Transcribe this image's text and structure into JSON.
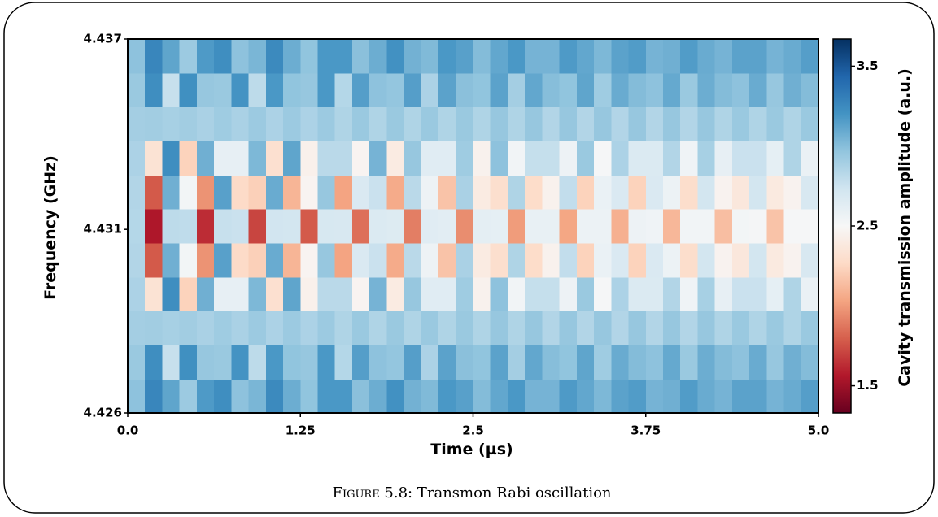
{
  "chart_data": {
    "type": "heatmap",
    "xlabel": "Time (µs)",
    "ylabel": "Frequency (GHz)",
    "x": [
      0.0625,
      0.1875,
      0.3125,
      0.4375,
      0.5625,
      0.6875,
      0.8125,
      0.9375,
      1.0625,
      1.1875,
      1.3125,
      1.4375,
      1.5625,
      1.6875,
      1.8125,
      1.9375,
      2.0625,
      2.1875,
      2.3125,
      2.4375,
      2.5625,
      2.6875,
      2.8125,
      2.9375,
      3.0625,
      3.1875,
      3.3125,
      3.4375,
      3.5625,
      3.6875,
      3.8125,
      3.9375,
      4.0625,
      4.1875,
      4.3125,
      4.4375,
      4.5625,
      4.6875,
      4.8125,
      4.9375
    ],
    "y": [
      4.4265,
      4.4275,
      4.4285,
      4.4295,
      4.4305,
      4.4315,
      4.4325,
      4.4335,
      4.4345,
      4.4355,
      4.4365
    ],
    "values": [
      [
        2.98,
        3.27,
        3.12,
        2.93,
        3.17,
        3.23,
        2.98,
        3.04,
        3.25,
        3.08,
        2.97,
        3.18,
        3.18,
        2.99,
        3.08,
        3.21,
        3.06,
        3.02,
        3.18,
        3.14,
        3.01,
        3.11,
        3.18,
        3.05,
        3.05,
        3.17,
        3.11,
        3.03,
        3.13,
        3.16,
        3.05,
        3.07,
        3.16,
        3.09,
        3.05,
        3.13,
        3.13,
        3.05,
        3.09,
        3.15
      ],
      [
        2.94,
        3.23,
        2.77,
        3.22,
        2.95,
        2.94,
        3.2,
        2.81,
        3.18,
        2.97,
        2.95,
        3.18,
        2.84,
        3.15,
        2.98,
        2.96,
        3.15,
        2.87,
        3.13,
        2.99,
        2.97,
        3.13,
        2.9,
        3.11,
        3.0,
        2.97,
        3.12,
        2.92,
        3.09,
        3.01,
        2.98,
        3.1,
        2.94,
        3.08,
        3.01,
        2.98,
        3.09,
        2.95,
        3.07,
        3.01
      ],
      [
        2.9,
        2.91,
        2.89,
        2.91,
        2.88,
        2.92,
        2.88,
        2.93,
        2.87,
        2.93,
        2.87,
        2.93,
        2.86,
        2.94,
        2.86,
        2.94,
        2.86,
        2.94,
        2.86,
        2.94,
        2.86,
        2.95,
        2.86,
        2.95,
        2.85,
        2.95,
        2.85,
        2.95,
        2.85,
        2.95,
        2.85,
        2.95,
        2.85,
        2.95,
        2.86,
        2.94,
        2.86,
        2.94,
        2.86,
        2.94
      ],
      [
        2.87,
        2.33,
        3.23,
        2.23,
        3.07,
        2.6,
        2.6,
        3.03,
        2.31,
        3.12,
        2.44,
        2.82,
        2.82,
        2.47,
        3.05,
        2.4,
        2.95,
        2.64,
        2.64,
        2.92,
        2.45,
        2.98,
        2.54,
        2.78,
        2.78,
        2.56,
        2.94,
        2.51,
        2.87,
        2.67,
        2.67,
        2.85,
        2.55,
        2.89,
        2.6,
        2.76,
        2.76,
        2.61,
        2.86,
        2.58
      ],
      [
        2.85,
        1.78,
        3.07,
        2.53,
        1.97,
        3.14,
        2.27,
        2.22,
        3.09,
        2.1,
        2.47,
        2.95,
        2.03,
        2.68,
        2.76,
        2.06,
        2.82,
        2.56,
        2.16,
        2.88,
        2.4,
        2.3,
        2.86,
        2.28,
        2.45,
        2.79,
        2.23,
        2.58,
        2.68,
        2.23,
        2.68,
        2.57,
        2.29,
        2.72,
        2.46,
        2.37,
        2.72,
        2.39,
        2.46,
        2.69
      ],
      [
        2.84,
        1.55,
        2.81,
        2.8,
        1.63,
        2.77,
        2.76,
        1.71,
        2.73,
        2.72,
        1.78,
        2.7,
        2.69,
        1.85,
        2.67,
        2.66,
        1.9,
        2.64,
        2.63,
        1.95,
        2.62,
        2.61,
        2.0,
        2.59,
        2.59,
        2.04,
        2.57,
        2.57,
        2.08,
        2.56,
        2.55,
        2.11,
        2.54,
        2.54,
        2.14,
        2.53,
        2.52,
        2.16,
        2.51,
        2.51
      ],
      [
        2.85,
        1.78,
        3.07,
        2.53,
        1.97,
        3.14,
        2.27,
        2.22,
        3.09,
        2.1,
        2.47,
        2.95,
        2.03,
        2.68,
        2.76,
        2.06,
        2.82,
        2.56,
        2.16,
        2.88,
        2.4,
        2.3,
        2.86,
        2.28,
        2.45,
        2.79,
        2.23,
        2.58,
        2.68,
        2.23,
        2.68,
        2.57,
        2.29,
        2.72,
        2.46,
        2.37,
        2.72,
        2.39,
        2.46,
        2.69
      ],
      [
        2.87,
        2.33,
        3.23,
        2.23,
        3.07,
        2.6,
        2.6,
        3.03,
        2.31,
        3.12,
        2.44,
        2.82,
        2.82,
        2.47,
        3.05,
        2.4,
        2.95,
        2.64,
        2.64,
        2.92,
        2.45,
        2.98,
        2.54,
        2.78,
        2.78,
        2.56,
        2.94,
        2.51,
        2.87,
        2.67,
        2.67,
        2.85,
        2.55,
        2.89,
        2.6,
        2.76,
        2.76,
        2.61,
        2.86,
        2.58
      ],
      [
        2.9,
        2.91,
        2.89,
        2.91,
        2.88,
        2.92,
        2.88,
        2.93,
        2.87,
        2.93,
        2.87,
        2.93,
        2.86,
        2.94,
        2.86,
        2.94,
        2.86,
        2.94,
        2.86,
        2.94,
        2.86,
        2.95,
        2.86,
        2.95,
        2.85,
        2.95,
        2.85,
        2.95,
        2.85,
        2.95,
        2.85,
        2.95,
        2.85,
        2.95,
        2.86,
        2.94,
        2.86,
        2.94,
        2.86,
        2.94
      ],
      [
        2.94,
        3.23,
        2.77,
        3.22,
        2.95,
        2.94,
        3.2,
        2.81,
        3.18,
        2.97,
        2.95,
        3.18,
        2.84,
        3.15,
        2.98,
        2.96,
        3.15,
        2.87,
        3.13,
        2.99,
        2.97,
        3.13,
        2.9,
        3.11,
        3.0,
        2.97,
        3.12,
        2.92,
        3.09,
        3.01,
        2.98,
        3.1,
        2.94,
        3.08,
        3.01,
        2.98,
        3.09,
        2.95,
        3.07,
        3.01
      ],
      [
        2.98,
        3.27,
        3.12,
        2.93,
        3.17,
        3.23,
        2.98,
        3.04,
        3.25,
        3.08,
        2.97,
        3.18,
        3.18,
        2.99,
        3.08,
        3.21,
        3.06,
        3.02,
        3.18,
        3.14,
        3.01,
        3.11,
        3.18,
        3.05,
        3.05,
        3.17,
        3.11,
        3.03,
        3.13,
        3.16,
        3.05,
        3.07,
        3.16,
        3.09,
        3.05,
        3.13,
        3.13,
        3.05,
        3.09,
        3.15
      ]
    ],
    "xlim": [
      0,
      5
    ],
    "ylim": [
      4.426,
      4.437
    ],
    "xticks": [
      {
        "value": 0,
        "label": "0.0"
      },
      1.25,
      2.5,
      3.75,
      {
        "value": 5,
        "label": "5.0"
      }
    ],
    "yticks": [
      {
        "value": 4.426,
        "label": "4.426"
      },
      {
        "value": 4.4314,
        "label": "4.431"
      },
      {
        "value": 4.437,
        "label": "4.437"
      }
    ],
    "colorbar": {
      "label": "Cavity transmission amplitude (a.u.)",
      "lim": [
        1.33,
        3.67
      ],
      "ticks": [
        1.5,
        2.5,
        3.5
      ],
      "colors": [
        "#67001f",
        "#b2182b",
        "#d6604d",
        "#f4a582",
        "#fddbc7",
        "#f7f7f7",
        "#d1e5f0",
        "#92c5de",
        "#4393c3",
        "#2166ac",
        "#053061"
      ]
    }
  },
  "caption": {
    "label": "Figure 5.8:",
    "text": "Transmon Rabi oscillation"
  }
}
